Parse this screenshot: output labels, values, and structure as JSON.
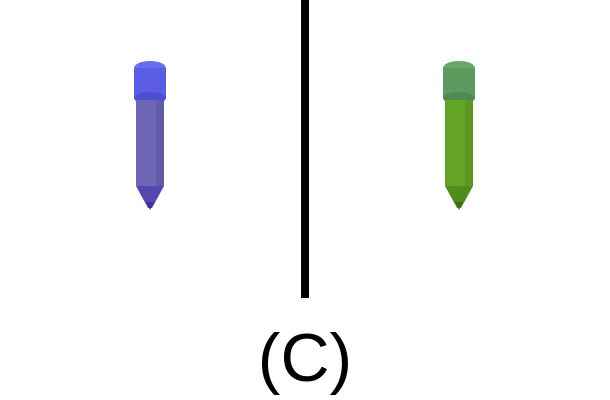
{
  "caption": "(C)",
  "left_crayon": {
    "icon": "crayon-icon",
    "colors": {
      "cap": "#5b5de6",
      "cap_dark": "#4d4fd0",
      "body": "#6f66b8",
      "body_shade": "#5f56a6",
      "tip": "#5546b0"
    }
  },
  "right_crayon": {
    "icon": "crayon-icon",
    "colors": {
      "cap": "#5c9a5e",
      "cap_dark": "#4f8a52",
      "body": "#63a424",
      "body_shade": "#55911c",
      "tip": "#4f8c1c"
    }
  },
  "divider_color": "#000000",
  "background": "#ffffff"
}
